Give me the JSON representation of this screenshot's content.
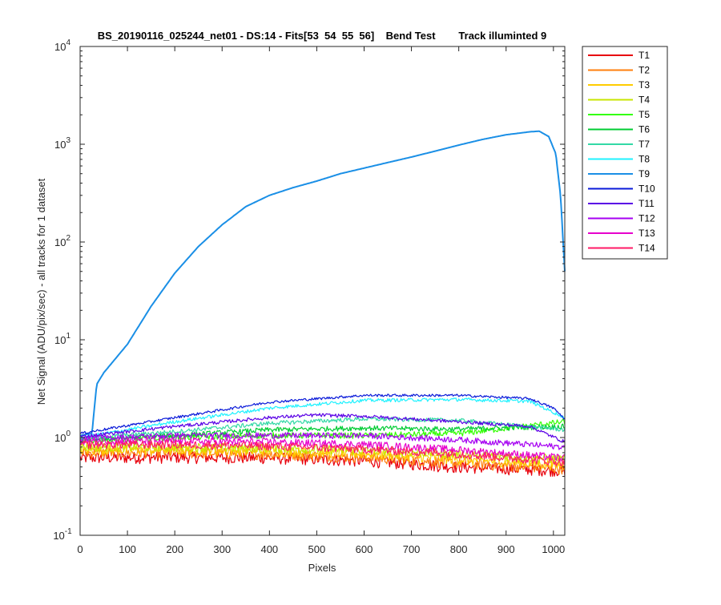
{
  "chart_data": {
    "type": "line",
    "title": "BS_20190116_025244_net01 - DS:14 - Fits[53  54  55  56]    Bend Test        Track illuminted 9",
    "xlabel": "Pixels",
    "ylabel": "Net Signal (ADU/pix/sec) - all tracks for 1 dataset",
    "xlim": [
      0,
      1024
    ],
    "ylim": [
      0.1,
      10000
    ],
    "yscale": "log",
    "grid": false,
    "legend_position": "outside-right",
    "x_ticks": [
      "0",
      "100",
      "200",
      "300",
      "400",
      "500",
      "600",
      "700",
      "800",
      "900",
      "1000"
    ],
    "y_ticks": [
      {
        "value": 0.1,
        "base": "10",
        "exp": "-1"
      },
      {
        "value": 1,
        "base": "10",
        "exp": "0"
      },
      {
        "value": 10,
        "base": "10",
        "exp": "1"
      },
      {
        "value": 100,
        "base": "10",
        "exp": "2"
      },
      {
        "value": 1000,
        "base": "10",
        "exp": "3"
      },
      {
        "value": 10000,
        "base": "10",
        "exp": "4"
      }
    ],
    "series": [
      {
        "name": "T1",
        "color": "#e8000b",
        "noise": 0.14,
        "points": [
          [
            0,
            0.62
          ],
          [
            200,
            0.63
          ],
          [
            400,
            0.62
          ],
          [
            600,
            0.58
          ],
          [
            800,
            0.5
          ],
          [
            1024,
            0.46
          ]
        ]
      },
      {
        "name": "T2",
        "color": "#ff7f0e",
        "noise": 0.13,
        "points": [
          [
            0,
            0.7
          ],
          [
            200,
            0.7
          ],
          [
            400,
            0.68
          ],
          [
            600,
            0.63
          ],
          [
            800,
            0.55
          ],
          [
            1024,
            0.48
          ]
        ]
      },
      {
        "name": "T3",
        "color": "#ffcc00",
        "noise": 0.12,
        "points": [
          [
            0,
            0.75
          ],
          [
            200,
            0.75
          ],
          [
            400,
            0.73
          ],
          [
            600,
            0.68
          ],
          [
            800,
            0.6
          ],
          [
            1024,
            0.52
          ]
        ]
      },
      {
        "name": "T4",
        "color": "#c8e600",
        "noise": 0.11,
        "points": [
          [
            0,
            0.8
          ],
          [
            200,
            0.8
          ],
          [
            400,
            0.78
          ],
          [
            600,
            0.74
          ],
          [
            800,
            0.68
          ],
          [
            1024,
            0.6
          ]
        ]
      },
      {
        "name": "T5",
        "color": "#33ff00",
        "noise": 0.07,
        "points": [
          [
            0,
            0.92
          ],
          [
            200,
            1.0
          ],
          [
            400,
            1.05
          ],
          [
            600,
            1.05
          ],
          [
            800,
            1.1
          ],
          [
            1024,
            1.45
          ]
        ]
      },
      {
        "name": "T6",
        "color": "#00cc33",
        "noise": 0.06,
        "points": [
          [
            0,
            0.95
          ],
          [
            200,
            1.05
          ],
          [
            400,
            1.2
          ],
          [
            600,
            1.25
          ],
          [
            800,
            1.22
          ],
          [
            1024,
            1.3
          ]
        ]
      },
      {
        "name": "T7",
        "color": "#33d9a6",
        "noise": 0.05,
        "points": [
          [
            0,
            0.98
          ],
          [
            200,
            1.15
          ],
          [
            400,
            1.4
          ],
          [
            600,
            1.55
          ],
          [
            800,
            1.5
          ],
          [
            1024,
            1.2
          ]
        ]
      },
      {
        "name": "T8",
        "color": "#1ff2ff",
        "noise": 0.04,
        "points": [
          [
            0,
            1.0
          ],
          [
            200,
            1.45
          ],
          [
            400,
            2.0
          ],
          [
            600,
            2.4
          ],
          [
            800,
            2.45
          ],
          [
            950,
            2.35
          ],
          [
            1024,
            1.6
          ]
        ]
      },
      {
        "name": "T9",
        "color": "#1a8fe6",
        "noise": 0.0,
        "points": [
          [
            0,
            1.05
          ],
          [
            25,
            1.1
          ],
          [
            35,
            3.5
          ],
          [
            50,
            4.6
          ],
          [
            100,
            9
          ],
          [
            150,
            22
          ],
          [
            200,
            48
          ],
          [
            250,
            90
          ],
          [
            300,
            150
          ],
          [
            350,
            230
          ],
          [
            400,
            300
          ],
          [
            450,
            360
          ],
          [
            500,
            420
          ],
          [
            550,
            500
          ],
          [
            600,
            570
          ],
          [
            650,
            650
          ],
          [
            700,
            740
          ],
          [
            750,
            850
          ],
          [
            800,
            980
          ],
          [
            850,
            1120
          ],
          [
            900,
            1250
          ],
          [
            950,
            1340
          ],
          [
            970,
            1360
          ],
          [
            990,
            1200
          ],
          [
            1005,
            800
          ],
          [
            1015,
            300
          ],
          [
            1024,
            50
          ]
        ]
      },
      {
        "name": "T10",
        "color": "#0a1ad9",
        "noise": 0.03,
        "points": [
          [
            0,
            1.1
          ],
          [
            200,
            1.6
          ],
          [
            400,
            2.3
          ],
          [
            600,
            2.7
          ],
          [
            800,
            2.7
          ],
          [
            950,
            2.5
          ],
          [
            1000,
            2.0
          ],
          [
            1024,
            1.55
          ]
        ]
      },
      {
        "name": "T11",
        "color": "#5a00e6",
        "noise": 0.04,
        "points": [
          [
            0,
            1.02
          ],
          [
            200,
            1.3
          ],
          [
            400,
            1.6
          ],
          [
            500,
            1.7
          ],
          [
            600,
            1.65
          ],
          [
            800,
            1.45
          ],
          [
            950,
            1.3
          ],
          [
            1024,
            0.9
          ]
        ]
      },
      {
        "name": "T12",
        "color": "#a600f2",
        "noise": 0.07,
        "points": [
          [
            0,
            0.98
          ],
          [
            200,
            1.05
          ],
          [
            400,
            1.05
          ],
          [
            600,
            1.05
          ],
          [
            800,
            0.95
          ],
          [
            1024,
            0.8
          ]
        ]
      },
      {
        "name": "T13",
        "color": "#e600cc",
        "noise": 0.09,
        "points": [
          [
            0,
            0.92
          ],
          [
            200,
            0.92
          ],
          [
            400,
            0.9
          ],
          [
            600,
            0.85
          ],
          [
            800,
            0.75
          ],
          [
            1024,
            0.62
          ]
        ]
      },
      {
        "name": "T14",
        "color": "#ff1a66",
        "noise": 0.1,
        "points": [
          [
            0,
            0.85
          ],
          [
            200,
            0.85
          ],
          [
            400,
            0.82
          ],
          [
            600,
            0.76
          ],
          [
            800,
            0.68
          ],
          [
            1024,
            0.56
          ]
        ]
      }
    ]
  }
}
